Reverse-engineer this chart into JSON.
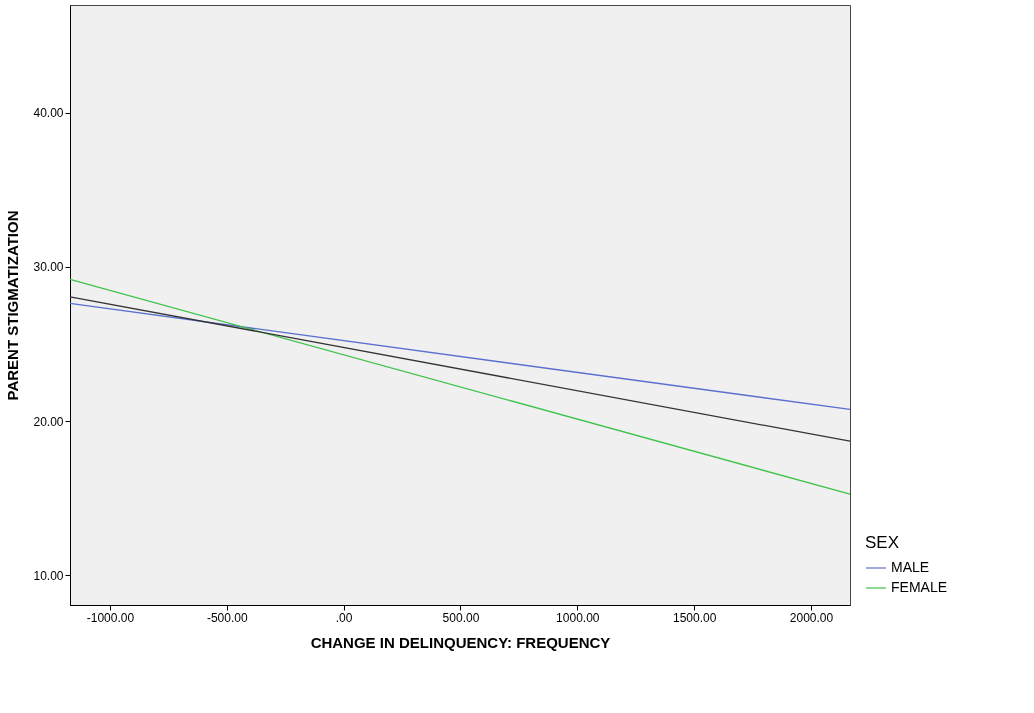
{
  "chart_data": {
    "type": "line",
    "xlabel": "CHANGE IN DELINQUENCY: FREQUENCY",
    "ylabel": "PARENT STIGMATIZATION",
    "legend_title": "SEX",
    "x": [
      -1171,
      2167
    ],
    "series": [
      {
        "name": "MALE",
        "color": "#5a6fcf",
        "values": [
          27.63,
          20.75
        ]
      },
      {
        "name": "FEMALE",
        "color": "#3fc24a",
        "values": [
          29.19,
          15.25
        ]
      },
      {
        "color": "#333333",
        "values": [
          28.06,
          18.69
        ]
      }
    ],
    "xlim": [
      -1171,
      2167
    ],
    "xticks": [
      {
        "value": -1000,
        "label": "-1000.00"
      },
      {
        "value": -500,
        "label": "-500.00"
      },
      {
        "value": 0,
        "label": ".00"
      },
      {
        "value": 500,
        "label": "500.00"
      },
      {
        "value": 1000,
        "label": "1000.00"
      },
      {
        "value": 1500,
        "label": "1500.00"
      },
      {
        "value": 2000,
        "label": "2000.00"
      }
    ],
    "ylim": [
      8.06,
      47
    ],
    "yticks": [
      {
        "value": 10,
        "label": "10.00"
      },
      {
        "value": 20,
        "label": "20.00"
      },
      {
        "value": 30,
        "label": "30.00"
      },
      {
        "value": 40,
        "label": "40.00"
      }
    ],
    "grid": false,
    "legend": "bottom right",
    "marker": "none",
    "line_style": "solid"
  }
}
